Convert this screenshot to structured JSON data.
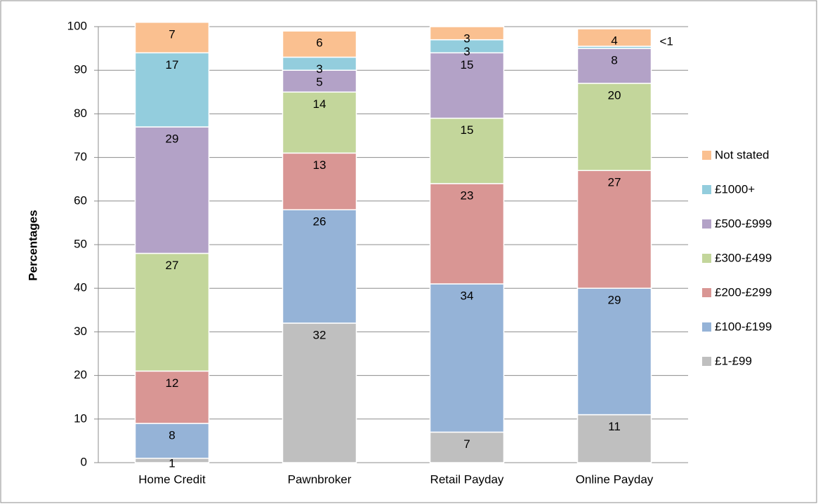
{
  "chart_data": {
    "type": "stacked_bar",
    "categories": [
      "Home Credit",
      "Pawnbroker",
      "Retail Payday",
      "Online Payday"
    ],
    "series": [
      {
        "name": "£1-£99",
        "color": "#bfbfbf",
        "values": [
          1,
          32,
          7,
          11
        ]
      },
      {
        "name": "£100-£199",
        "color": "#95b3d7",
        "values": [
          8,
          26,
          34,
          29
        ]
      },
      {
        "name": "£200-£299",
        "color": "#d99694",
        "values": [
          12,
          13,
          23,
          27
        ]
      },
      {
        "name": "£300-£499",
        "color": "#c3d69b",
        "values": [
          27,
          14,
          15,
          20
        ]
      },
      {
        "name": "£500-£999",
        "color": "#b3a2c7",
        "values": [
          29,
          5,
          15,
          8
        ]
      },
      {
        "name": "£1000+",
        "color": "#93cddd",
        "values": [
          17,
          3,
          3,
          0.5
        ],
        "value_labels": [
          "17",
          "3",
          "3",
          "<1"
        ]
      },
      {
        "name": "Not stated",
        "color": "#fac090",
        "values": [
          7,
          6,
          3,
          4
        ]
      }
    ],
    "ylabel": "Percentages",
    "ylim": [
      0,
      100
    ],
    "yticks": [
      0,
      10,
      20,
      30,
      40,
      50,
      60,
      70,
      80,
      90,
      100
    ],
    "grid": true,
    "legend": "right"
  }
}
